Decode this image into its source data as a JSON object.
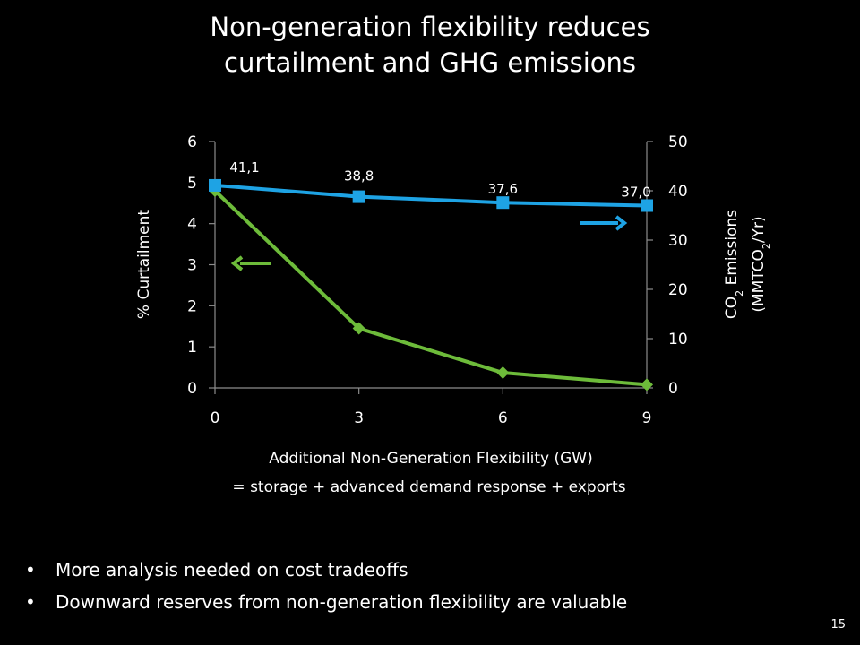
{
  "slide": {
    "title_line1": "Non-generation flexibility reduces",
    "title_line2": "curtailment and GHG emissions",
    "bullets": [
      "More analysis needed on cost tradeoffs",
      "Downward reserves from non-generation flexibility are valuable"
    ],
    "page_number": "15"
  },
  "chart_data": {
    "type": "line",
    "title": "",
    "xlabel": "Additional Non-Generation Flexibility (GW)",
    "xlabel_line2": "= storage + advanced demand response + exports",
    "ylabel_left": "% Curtailment",
    "ylabel_right_line1": "CO2 Emissions",
    "ylabel_right_line2": "(MMTCO2/Yr)",
    "x": [
      0,
      3,
      6,
      9
    ],
    "x_ticks": [
      "0",
      "3",
      "6",
      "9"
    ],
    "xlim": [
      0,
      9
    ],
    "ylim_left": [
      0,
      6
    ],
    "yticks_left": [
      "0",
      "1",
      "2",
      "3",
      "4",
      "5",
      "6"
    ],
    "ylim_right": [
      0,
      50
    ],
    "yticks_right": [
      "0",
      "10",
      "20",
      "30",
      "40",
      "50"
    ],
    "grid": false,
    "series": [
      {
        "axis": "left",
        "color": "#6dbb3a",
        "marker": "diamond",
        "values": [
          4.8,
          1.45,
          0.37,
          0.08
        ],
        "data_labels": []
      },
      {
        "axis": "right",
        "color": "#1ea3e4",
        "marker": "square",
        "values": [
          41.1,
          38.8,
          37.6,
          37.0
        ],
        "data_labels": [
          "41,1",
          "38,8",
          "37,6",
          "37,0"
        ]
      }
    ],
    "annotations": [
      {
        "type": "arrow",
        "points_to": "left-axis",
        "color": "#6dbb3a"
      },
      {
        "type": "arrow",
        "points_to": "right-axis",
        "color": "#1ea3e4"
      }
    ]
  }
}
